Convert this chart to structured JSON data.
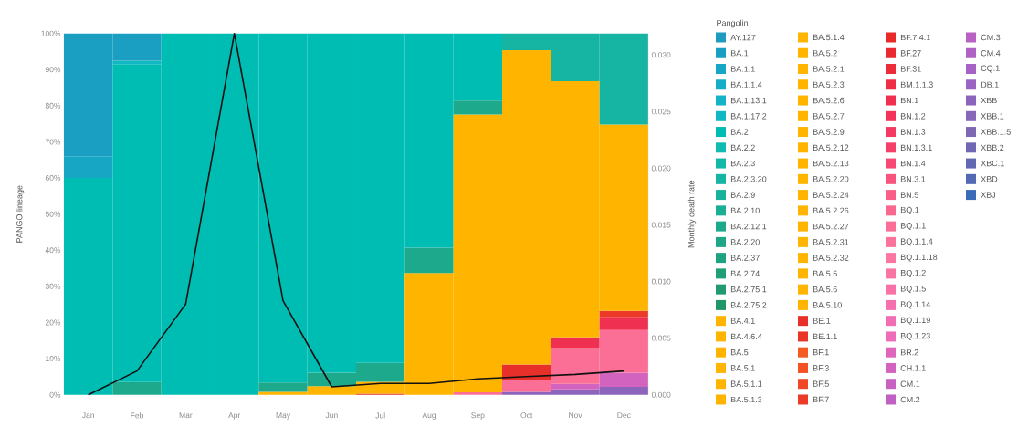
{
  "chart_data": {
    "type": "bar",
    "stacked": true,
    "legend": "right",
    "legend_title": "Pangolin",
    "ylabel": "PANGO lineage",
    "y2label": "Monthly death rate",
    "categories": [
      "Jan",
      "Feb",
      "Mar",
      "Apr",
      "May",
      "Jun",
      "Jul",
      "Aug",
      "Sep",
      "Oct",
      "Nov",
      "Dec"
    ],
    "ylim": [
      0,
      100
    ],
    "yticks": [
      {
        "value": 0,
        "label": "0%"
      },
      {
        "value": 10,
        "label": "10%"
      },
      {
        "value": 20,
        "label": "20%"
      },
      {
        "value": 30,
        "label": "30%"
      },
      {
        "value": 40,
        "label": "40%"
      },
      {
        "value": 50,
        "label": "50%"
      },
      {
        "value": 60,
        "label": "60%"
      },
      {
        "value": 70,
        "label": "70%"
      },
      {
        "value": 80,
        "label": "80%"
      },
      {
        "value": 90,
        "label": "90%"
      },
      {
        "value": 100,
        "label": "100%"
      }
    ],
    "y2lim": [
      0,
      0.0319
    ],
    "y2ticks": [
      {
        "value": 0,
        "label": "0.000"
      },
      {
        "value": 0.005,
        "label": "0.005"
      },
      {
        "value": 0.01,
        "label": "0.010"
      },
      {
        "value": 0.015,
        "label": "0.015"
      },
      {
        "value": 0.02,
        "label": "0.020"
      },
      {
        "value": 0.025,
        "label": "0.025"
      },
      {
        "value": 0.03,
        "label": "0.030"
      }
    ],
    "series": [
      {
        "name": "XBJ",
        "color": "#3a6cb8",
        "values": [
          null,
          null,
          null,
          null,
          null,
          null,
          null,
          null,
          null,
          null,
          null,
          null
        ]
      },
      {
        "name": "XBD",
        "color": "#5468b4",
        "values": [
          null,
          null,
          null,
          null,
          null,
          null,
          null,
          null,
          null,
          null,
          null,
          null
        ]
      },
      {
        "name": "XBC.1",
        "color": "#6268b2",
        "values": [
          null,
          null,
          null,
          null,
          null,
          null,
          null,
          null,
          null,
          null,
          null,
          null
        ]
      },
      {
        "name": "XBB.2",
        "color": "#7068b2",
        "values": [
          null,
          null,
          null,
          null,
          null,
          null,
          null,
          null,
          null,
          null,
          null,
          null
        ]
      },
      {
        "name": "XBB.1.5",
        "color": "#7e68b4",
        "values": [
          null,
          null,
          null,
          null,
          null,
          null,
          null,
          null,
          null,
          null,
          null,
          null
        ]
      },
      {
        "name": "XBB.1",
        "color": "#8866b8",
        "values": [
          null,
          null,
          null,
          null,
          null,
          null,
          null,
          null,
          null,
          null,
          null,
          null
        ]
      },
      {
        "name": "XBB",
        "color": "#8c64bc",
        "values": [
          null,
          null,
          null,
          null,
          null,
          null,
          null,
          null,
          null,
          0.8,
          1.5,
          2.2
        ]
      },
      {
        "name": "DB.1",
        "color": "#9c64c2",
        "values": [
          null,
          null,
          null,
          null,
          null,
          null,
          null,
          null,
          null,
          null,
          null,
          null
        ]
      },
      {
        "name": "CQ.1",
        "color": "#a662c4",
        "values": [
          null,
          null,
          null,
          null,
          null,
          null,
          null,
          null,
          null,
          null,
          null,
          null
        ]
      },
      {
        "name": "CM.4",
        "color": "#b062c4",
        "values": [
          null,
          null,
          null,
          null,
          null,
          null,
          null,
          null,
          null,
          null,
          null,
          null
        ]
      },
      {
        "name": "CM.3",
        "color": "#b862c4",
        "values": [
          null,
          null,
          null,
          null,
          null,
          null,
          null,
          null,
          null,
          null,
          null,
          null
        ]
      },
      {
        "name": "CM.2",
        "color": "#c060c2",
        "values": [
          null,
          null,
          null,
          null,
          null,
          null,
          null,
          null,
          null,
          null,
          null,
          null
        ]
      },
      {
        "name": "CM.1",
        "color": "#c862c2",
        "values": [
          null,
          null,
          null,
          null,
          null,
          null,
          null,
          null,
          null,
          null,
          null,
          null
        ]
      },
      {
        "name": "CH.1.1",
        "color": "#d264c0",
        "values": [
          null,
          null,
          null,
          null,
          null,
          null,
          null,
          null,
          null,
          null,
          1.5,
          3.9
        ]
      },
      {
        "name": "BR.2",
        "color": "#e066bc",
        "values": [
          null,
          null,
          null,
          null,
          null,
          null,
          null,
          null,
          null,
          null,
          null,
          null
        ]
      },
      {
        "name": "BQ.1.23",
        "color": "#ee6cb8",
        "values": [
          null,
          null,
          null,
          null,
          null,
          null,
          null,
          null,
          null,
          null,
          null,
          null
        ]
      },
      {
        "name": "BQ.1.19",
        "color": "#f26eb4",
        "values": [
          null,
          null,
          null,
          null,
          null,
          null,
          null,
          null,
          null,
          null,
          null,
          null
        ]
      },
      {
        "name": "BQ.1.14",
        "color": "#f670ae",
        "values": [
          null,
          null,
          null,
          null,
          null,
          null,
          null,
          null,
          null,
          null,
          null,
          null
        ]
      },
      {
        "name": "BQ.1.5",
        "color": "#f872a8",
        "values": [
          null,
          null,
          null,
          null,
          null,
          null,
          null,
          null,
          null,
          null,
          null,
          null
        ]
      },
      {
        "name": "BQ.1.2",
        "color": "#fa74a4",
        "values": [
          null,
          null,
          null,
          null,
          null,
          null,
          null,
          null,
          null,
          null,
          null,
          null
        ]
      },
      {
        "name": "BQ.1.1.18",
        "color": "#fb76a0",
        "values": [
          null,
          null,
          null,
          null,
          null,
          null,
          null,
          null,
          null,
          null,
          null,
          null
        ]
      },
      {
        "name": "BQ.1.1.4",
        "color": "#fb729a",
        "values": [
          null,
          null,
          null,
          null,
          null,
          null,
          null,
          null,
          null,
          null,
          null,
          null
        ]
      },
      {
        "name": "BQ.1.1",
        "color": "#fb6e96",
        "values": [
          null,
          null,
          null,
          null,
          null,
          null,
          null,
          null,
          0.7,
          3.4,
          9.9,
          11.8
        ]
      },
      {
        "name": "BQ.1",
        "color": "#fa6890",
        "values": [
          null,
          null,
          null,
          null,
          null,
          null,
          null,
          null,
          null,
          null,
          null,
          null
        ]
      },
      {
        "name": "BN.5",
        "color": "#f95e88",
        "values": [
          null,
          null,
          null,
          null,
          null,
          null,
          null,
          null,
          null,
          null,
          null,
          null
        ]
      },
      {
        "name": "BN.3.1",
        "color": "#f8547e",
        "values": [
          null,
          null,
          null,
          null,
          null,
          null,
          null,
          null,
          null,
          null,
          null,
          null
        ]
      },
      {
        "name": "BN.1.4",
        "color": "#f64a74",
        "values": [
          null,
          null,
          null,
          null,
          null,
          null,
          null,
          null,
          null,
          null,
          null,
          null
        ]
      },
      {
        "name": "BN.1.3.1",
        "color": "#f5406a",
        "values": [
          null,
          null,
          null,
          null,
          null,
          null,
          null,
          null,
          null,
          null,
          null,
          null
        ]
      },
      {
        "name": "BN.1.3",
        "color": "#f43a62",
        "values": [
          null,
          null,
          null,
          null,
          null,
          null,
          null,
          null,
          null,
          null,
          null,
          null
        ]
      },
      {
        "name": "BN.1.2",
        "color": "#f2345a",
        "values": [
          null,
          null,
          null,
          null,
          null,
          null,
          null,
          null,
          null,
          null,
          null,
          null
        ]
      },
      {
        "name": "BN.1",
        "color": "#f03050",
        "values": [
          null,
          null,
          null,
          null,
          null,
          null,
          null,
          null,
          null,
          null,
          3.0,
          3.7
        ]
      },
      {
        "name": "BM.1.1.3",
        "color": "#ee2e44",
        "values": [
          null,
          null,
          null,
          null,
          null,
          null,
          null,
          null,
          null,
          null,
          null,
          null
        ]
      },
      {
        "name": "BF.31",
        "color": "#ec2c38",
        "values": [
          null,
          null,
          null,
          null,
          null,
          null,
          null,
          null,
          null,
          null,
          null,
          null
        ]
      },
      {
        "name": "BF.27",
        "color": "#ea2a30",
        "values": [
          null,
          null,
          null,
          null,
          null,
          null,
          null,
          null,
          null,
          null,
          null,
          null
        ]
      },
      {
        "name": "BF.7.4.1",
        "color": "#e82a2a",
        "values": [
          null,
          null,
          null,
          null,
          null,
          null,
          null,
          null,
          null,
          null,
          null,
          null
        ]
      },
      {
        "name": "BF.7",
        "color": "#ec3a28",
        "values": [
          null,
          null,
          null,
          null,
          null,
          null,
          null,
          null,
          null,
          null,
          null,
          1.6
        ]
      },
      {
        "name": "BF.5",
        "color": "#f04826",
        "values": [
          null,
          null,
          null,
          null,
          null,
          null,
          null,
          null,
          null,
          null,
          null,
          null
        ]
      },
      {
        "name": "BF.3",
        "color": "#f25224",
        "values": [
          null,
          null,
          null,
          null,
          null,
          null,
          null,
          null,
          null,
          null,
          null,
          null
        ]
      },
      {
        "name": "BF.1",
        "color": "#f45a22",
        "values": [
          null,
          null,
          null,
          null,
          null,
          null,
          null,
          null,
          null,
          null,
          null,
          null
        ]
      },
      {
        "name": "BE.1.1",
        "color": "#ea3428",
        "values": [
          null,
          null,
          null,
          null,
          null,
          null,
          null,
          null,
          null,
          null,
          null,
          null
        ]
      },
      {
        "name": "BE.1",
        "color": "#e8302a",
        "values": [
          null,
          null,
          null,
          null,
          null,
          null,
          0.3,
          null,
          null,
          4.2,
          null,
          null
        ]
      },
      {
        "name": "BA.5.10",
        "color": "#ffb400",
        "values": [
          null,
          null,
          null,
          null,
          null,
          null,
          null,
          null,
          null,
          null,
          null,
          null
        ]
      },
      {
        "name": "BA.5.6",
        "color": "#ffb400",
        "values": [
          null,
          null,
          null,
          null,
          null,
          null,
          null,
          null,
          null,
          null,
          null,
          null
        ]
      },
      {
        "name": "BA.5.5",
        "color": "#ffb400",
        "values": [
          null,
          null,
          null,
          null,
          null,
          null,
          null,
          null,
          null,
          null,
          null,
          null
        ]
      },
      {
        "name": "BA.5.2.32",
        "color": "#ffb400",
        "values": [
          null,
          null,
          null,
          null,
          null,
          null,
          null,
          null,
          null,
          null,
          null,
          null
        ]
      },
      {
        "name": "BA.5.2.31",
        "color": "#ffb400",
        "values": [
          null,
          null,
          null,
          null,
          null,
          null,
          null,
          null,
          null,
          null,
          null,
          null
        ]
      },
      {
        "name": "BA.5.2.27",
        "color": "#ffb400",
        "values": [
          null,
          null,
          null,
          null,
          null,
          null,
          null,
          null,
          null,
          null,
          null,
          null
        ]
      },
      {
        "name": "BA.5.2.26",
        "color": "#ffb400",
        "values": [
          null,
          null,
          null,
          null,
          null,
          null,
          null,
          null,
          null,
          null,
          null,
          null
        ]
      },
      {
        "name": "BA.5.2.24",
        "color": "#ffb400",
        "values": [
          null,
          null,
          null,
          null,
          null,
          null,
          null,
          null,
          null,
          null,
          null,
          null
        ]
      },
      {
        "name": "BA.5.2.20",
        "color": "#ffb400",
        "values": [
          null,
          null,
          null,
          null,
          null,
          null,
          null,
          null,
          null,
          null,
          null,
          null
        ]
      },
      {
        "name": "BA.5.2.13",
        "color": "#ffb400",
        "values": [
          null,
          null,
          null,
          null,
          null,
          null,
          null,
          null,
          null,
          null,
          null,
          null
        ]
      },
      {
        "name": "BA.5.2.12",
        "color": "#ffb400",
        "values": [
          null,
          null,
          null,
          null,
          null,
          null,
          null,
          null,
          null,
          null,
          null,
          null
        ]
      },
      {
        "name": "BA.5.2.9",
        "color": "#ffb400",
        "values": [
          null,
          null,
          null,
          null,
          null,
          null,
          null,
          null,
          null,
          null,
          null,
          null
        ]
      },
      {
        "name": "BA.5.2.7",
        "color": "#ffb400",
        "values": [
          null,
          null,
          null,
          null,
          null,
          null,
          null,
          null,
          null,
          null,
          null,
          null
        ]
      },
      {
        "name": "BA.5.2.6",
        "color": "#ffb400",
        "values": [
          null,
          null,
          null,
          null,
          null,
          null,
          null,
          null,
          null,
          null,
          null,
          null
        ]
      },
      {
        "name": "BA.5.2.3",
        "color": "#ffb400",
        "values": [
          null,
          null,
          null,
          null,
          null,
          null,
          null,
          null,
          null,
          null,
          null,
          null
        ]
      },
      {
        "name": "BA.5.2.1",
        "color": "#ffb400",
        "values": [
          null,
          null,
          null,
          null,
          null,
          null,
          null,
          null,
          null,
          null,
          null,
          null
        ]
      },
      {
        "name": "BA.5.2",
        "color": "#ffb400",
        "values": [
          null,
          null,
          null,
          null,
          null,
          null,
          null,
          null,
          null,
          null,
          null,
          null
        ]
      },
      {
        "name": "BA.5.1.4",
        "color": "#ffb400",
        "values": [
          null,
          null,
          null,
          null,
          null,
          null,
          null,
          null,
          null,
          null,
          null,
          null
        ]
      },
      {
        "name": "BA.5.1.3",
        "color": "#ffb400",
        "values": [
          null,
          null,
          null,
          null,
          null,
          null,
          null,
          null,
          null,
          null,
          null,
          null
        ]
      },
      {
        "name": "BA.5.1.1",
        "color": "#ffb400",
        "values": [
          null,
          null,
          null,
          null,
          null,
          null,
          null,
          null,
          null,
          null,
          null,
          null
        ]
      },
      {
        "name": "BA.5.1",
        "color": "#ffb400",
        "values": [
          null,
          null,
          null,
          null,
          null,
          null,
          null,
          null,
          null,
          null,
          null,
          null
        ]
      },
      {
        "name": "BA.5",
        "color": "#ffb400",
        "values": [
          null,
          null,
          null,
          null,
          0.8,
          2.4,
          3.3,
          33.7,
          76.9,
          87.0,
          70.9,
          51.6
        ]
      },
      {
        "name": "BA.4.6.4",
        "color": "#ffb400",
        "values": [
          null,
          null,
          null,
          null,
          null,
          null,
          null,
          null,
          null,
          null,
          null,
          null
        ]
      },
      {
        "name": "BA.4.1",
        "color": "#ffb400",
        "values": [
          null,
          null,
          null,
          null,
          null,
          null,
          null,
          null,
          null,
          null,
          null,
          null
        ]
      },
      {
        "name": "BA.2.75.2",
        "color": "#219668",
        "values": [
          null,
          null,
          null,
          null,
          null,
          null,
          null,
          null,
          null,
          null,
          null,
          null
        ]
      },
      {
        "name": "BA.2.75.1",
        "color": "#209a70",
        "values": [
          null,
          null,
          null,
          null,
          null,
          null,
          null,
          null,
          null,
          null,
          null,
          null
        ]
      },
      {
        "name": "BA.2.74",
        "color": "#209e78",
        "values": [
          null,
          null,
          null,
          null,
          null,
          null,
          null,
          null,
          null,
          null,
          null,
          null
        ]
      },
      {
        "name": "BA.2.37",
        "color": "#1fa280",
        "values": [
          null,
          null,
          null,
          null,
          null,
          null,
          null,
          null,
          null,
          null,
          null,
          null
        ]
      },
      {
        "name": "BA.2.20",
        "color": "#1ea686",
        "values": [
          null,
          null,
          null,
          null,
          null,
          null,
          null,
          null,
          null,
          null,
          null,
          null
        ]
      },
      {
        "name": "BA.2.12.1",
        "color": "#1ca98c",
        "values": [
          null,
          3.5,
          null,
          null,
          2.6,
          3.7,
          5.2,
          7.0,
          3.8,
          null,
          null,
          null
        ]
      },
      {
        "name": "BA.2.10",
        "color": "#1aae94",
        "values": [
          null,
          null,
          null,
          null,
          null,
          null,
          null,
          null,
          null,
          null,
          null,
          null
        ]
      },
      {
        "name": "BA.2.9",
        "color": "#18b19a",
        "values": [
          null,
          null,
          null,
          null,
          null,
          null,
          null,
          null,
          null,
          null,
          null,
          null
        ]
      },
      {
        "name": "BA.2.3.20",
        "color": "#16b4a2",
        "values": [
          null,
          null,
          null,
          null,
          null,
          null,
          null,
          null,
          null,
          4.6,
          13.2,
          25.2
        ]
      },
      {
        "name": "BA.2.3",
        "color": "#14b8a8",
        "values": [
          null,
          null,
          null,
          null,
          null,
          null,
          null,
          null,
          null,
          null,
          null,
          null
        ]
      },
      {
        "name": "BA.2.2",
        "color": "#12bbb0",
        "values": [
          null,
          null,
          null,
          null,
          null,
          null,
          null,
          null,
          null,
          null,
          null,
          null
        ]
      },
      {
        "name": "BA.2",
        "color": "#00bdb4",
        "values": [
          60,
          88,
          100,
          100,
          96.6,
          93.9,
          91.2,
          59.3,
          18.6,
          null,
          null,
          null
        ]
      },
      {
        "name": "BA.1.17.2",
        "color": "#12b7c4",
        "values": [
          null,
          1,
          null,
          null,
          null,
          null,
          null,
          null,
          null,
          null,
          null,
          null
        ]
      },
      {
        "name": "BA.1.13.1",
        "color": "#14b3c6",
        "values": [
          null,
          null,
          null,
          null,
          null,
          null,
          null,
          null,
          null,
          null,
          null,
          null
        ]
      },
      {
        "name": "BA.1.1.4",
        "color": "#15aec6",
        "values": [
          null,
          null,
          null,
          null,
          null,
          null,
          null,
          null,
          null,
          null,
          null,
          null
        ]
      },
      {
        "name": "BA.1.1",
        "color": "#17a6c4",
        "values": [
          6,
          null,
          null,
          null,
          null,
          null,
          null,
          null,
          null,
          null,
          null,
          null
        ]
      },
      {
        "name": "BA.1",
        "color": "#1a9fc2",
        "values": [
          34,
          7.5,
          null,
          null,
          null,
          null,
          null,
          null,
          null,
          null,
          null,
          null
        ]
      },
      {
        "name": "AY.127",
        "color": "#1f9bbf",
        "values": [
          null,
          null,
          null,
          null,
          null,
          null,
          null,
          null,
          null,
          null,
          null,
          null
        ]
      },
      {
        "type": "line",
        "axis": "y2",
        "color": "#111111",
        "values": [
          0,
          0.0021,
          0.008,
          0.0319,
          0.0083,
          0.0007,
          0.001,
          0.001,
          0.0014,
          0.0016,
          0.0018,
          0.0021
        ]
      }
    ]
  }
}
